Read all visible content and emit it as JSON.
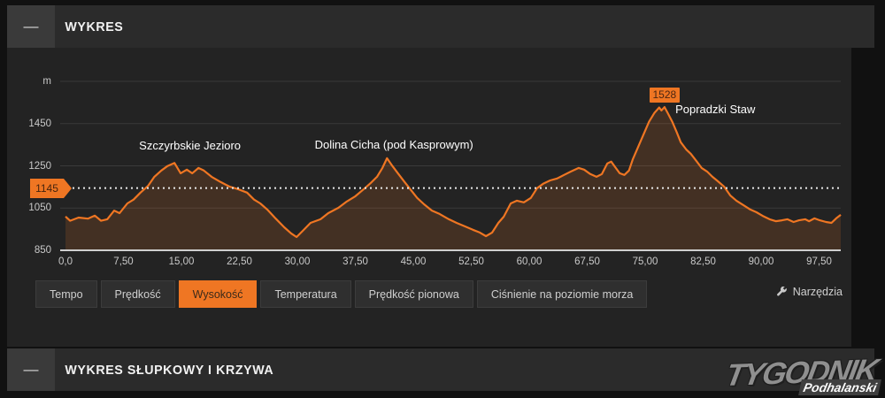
{
  "sections": {
    "chart": {
      "title": "WYKRES",
      "collapse_label": "—"
    },
    "bar_chart": {
      "title": "WYKRES SŁUPKOWY I KRZYWA",
      "collapse_label": "—"
    }
  },
  "tabs": {
    "items": [
      {
        "label": "Tempo",
        "active": false
      },
      {
        "label": "Prędkość",
        "active": false
      },
      {
        "label": "Wysokość",
        "active": true
      },
      {
        "label": "Temperatura",
        "active": false
      },
      {
        "label": "Prędkość pionowa",
        "active": false
      },
      {
        "label": "Ciśnienie na poziomie morza",
        "active": false
      }
    ]
  },
  "tools": {
    "label": "Narzędzia",
    "icon": "wrench-icon"
  },
  "watermark": {
    "line1": "TYGODNIK",
    "line2": "Podhalanski"
  },
  "colors": {
    "accent": "#ef7623",
    "panel": "#232323",
    "header": "#2b2b2b",
    "gridline": "#3a3a3a",
    "axis_line": "#cfcfcf",
    "tick_text": "#c9c9c9",
    "curve_fill": "rgba(239,118,35,0.16)",
    "threshold_dots": "#e8e8e8"
  },
  "chart_data": {
    "type": "area",
    "title": "Wysokość",
    "unit": "m",
    "x_axis": {
      "min": 0,
      "max": 100.3,
      "ticks": [
        0,
        7.5,
        15,
        22.5,
        30,
        37.5,
        45,
        52.5,
        60,
        67.5,
        75,
        82.5,
        90,
        97.5
      ],
      "tick_labels": [
        "0,0",
        "7,50",
        "15,00",
        "22,50",
        "30,00",
        "37,50",
        "45,00",
        "52,50",
        "60,00",
        "67,50",
        "75,00",
        "82,50",
        "90,00",
        "97,50"
      ]
    },
    "y_axis": {
      "min": 850,
      "max": 1650,
      "tick_labels": [
        {
          "value": 1650,
          "label": "m"
        },
        {
          "value": 1450,
          "label": "1450"
        },
        {
          "value": 1250,
          "label": "1250"
        },
        {
          "value": 1050,
          "label": "1050"
        },
        {
          "value": 850,
          "label": "850"
        }
      ],
      "gridlines": [
        1650,
        1450,
        1250,
        1050
      ]
    },
    "threshold": {
      "value": 1145,
      "label": "1145"
    },
    "max_marker": {
      "value": 1528,
      "label": "1528",
      "x": 77.5
    },
    "annotations": [
      {
        "label": "Szczyrbskie Jezioro",
        "x": 16.1,
        "y": 1345,
        "align": "center"
      },
      {
        "label": "Dolina Cicha (pod Kasprowym)",
        "x": 42.5,
        "y": 1350,
        "align": "center"
      },
      {
        "label": "Popradzki Staw",
        "x": 78.9,
        "y": 1515,
        "align": "left"
      }
    ],
    "series": [
      {
        "name": "Wysokość",
        "color": "#ef7623",
        "points": [
          [
            0.0,
            1010
          ],
          [
            0.6,
            990
          ],
          [
            1.7,
            1005
          ],
          [
            2.9,
            1000
          ],
          [
            3.8,
            1014
          ],
          [
            4.6,
            990
          ],
          [
            5.4,
            997
          ],
          [
            6.3,
            1038
          ],
          [
            7.0,
            1026
          ],
          [
            8.0,
            1072
          ],
          [
            8.8,
            1090
          ],
          [
            9.7,
            1123
          ],
          [
            10.7,
            1156
          ],
          [
            11.5,
            1198
          ],
          [
            12.4,
            1228
          ],
          [
            13.2,
            1249
          ],
          [
            14.1,
            1264
          ],
          [
            14.9,
            1215
          ],
          [
            15.7,
            1232
          ],
          [
            16.4,
            1215
          ],
          [
            17.2,
            1240
          ],
          [
            17.9,
            1228
          ],
          [
            18.9,
            1198
          ],
          [
            20.1,
            1173
          ],
          [
            21.2,
            1152
          ],
          [
            22.3,
            1140
          ],
          [
            23.5,
            1123
          ],
          [
            24.4,
            1090
          ],
          [
            25.2,
            1072
          ],
          [
            26.1,
            1043
          ],
          [
            27.2,
            1000
          ],
          [
            28.3,
            959
          ],
          [
            29.2,
            930
          ],
          [
            29.9,
            913
          ],
          [
            30.7,
            942
          ],
          [
            31.7,
            980
          ],
          [
            33.0,
            997
          ],
          [
            34.0,
            1026
          ],
          [
            35.3,
            1051
          ],
          [
            36.4,
            1081
          ],
          [
            37.5,
            1106
          ],
          [
            38.6,
            1140
          ],
          [
            39.5,
            1169
          ],
          [
            40.3,
            1198
          ],
          [
            41.0,
            1240
          ],
          [
            41.6,
            1286
          ],
          [
            42.3,
            1249
          ],
          [
            43.0,
            1215
          ],
          [
            43.8,
            1177
          ],
          [
            44.5,
            1144
          ],
          [
            45.5,
            1098
          ],
          [
            46.4,
            1068
          ],
          [
            47.4,
            1038
          ],
          [
            48.4,
            1022
          ],
          [
            49.6,
            997
          ],
          [
            50.6,
            980
          ],
          [
            51.7,
            963
          ],
          [
            52.7,
            947
          ],
          [
            53.6,
            934
          ],
          [
            54.4,
            917
          ],
          [
            55.2,
            934
          ],
          [
            56.0,
            980
          ],
          [
            56.7,
            1009
          ],
          [
            57.6,
            1072
          ],
          [
            58.4,
            1085
          ],
          [
            59.3,
            1077
          ],
          [
            60.2,
            1098
          ],
          [
            61.0,
            1144
          ],
          [
            61.8,
            1165
          ],
          [
            62.7,
            1181
          ],
          [
            63.6,
            1190
          ],
          [
            64.5,
            1207
          ],
          [
            65.4,
            1223
          ],
          [
            66.4,
            1240
          ],
          [
            67.1,
            1232
          ],
          [
            67.9,
            1211
          ],
          [
            68.7,
            1198
          ],
          [
            69.4,
            1211
          ],
          [
            70.1,
            1261
          ],
          [
            70.6,
            1270
          ],
          [
            71.2,
            1240
          ],
          [
            71.7,
            1215
          ],
          [
            72.3,
            1207
          ],
          [
            72.9,
            1228
          ],
          [
            73.4,
            1282
          ],
          [
            74.1,
            1341
          ],
          [
            74.8,
            1400
          ],
          [
            75.5,
            1459
          ],
          [
            76.2,
            1501
          ],
          [
            76.8,
            1526
          ],
          [
            77.1,
            1512
          ],
          [
            77.5,
            1528
          ],
          [
            77.9,
            1501
          ],
          [
            78.5,
            1459
          ],
          [
            79.1,
            1408
          ],
          [
            79.6,
            1362
          ],
          [
            80.3,
            1328
          ],
          [
            80.9,
            1307
          ],
          [
            81.6,
            1274
          ],
          [
            82.3,
            1240
          ],
          [
            83.0,
            1223
          ],
          [
            83.7,
            1198
          ],
          [
            84.4,
            1177
          ],
          [
            85.2,
            1152
          ],
          [
            86.0,
            1110
          ],
          [
            86.8,
            1085
          ],
          [
            87.7,
            1064
          ],
          [
            88.6,
            1043
          ],
          [
            89.4,
            1030
          ],
          [
            90.2,
            1013
          ],
          [
            91.1,
            997
          ],
          [
            91.9,
            988
          ],
          [
            92.7,
            992
          ],
          [
            93.4,
            997
          ],
          [
            94.2,
            984
          ],
          [
            94.9,
            992
          ],
          [
            95.7,
            997
          ],
          [
            96.2,
            988
          ],
          [
            96.9,
            1001
          ],
          [
            97.6,
            992
          ],
          [
            98.4,
            984
          ],
          [
            99.1,
            980
          ],
          [
            99.7,
            1001
          ],
          [
            100.3,
            1018
          ]
        ]
      }
    ],
    "legend": "none",
    "grid": "horizontal-only"
  }
}
